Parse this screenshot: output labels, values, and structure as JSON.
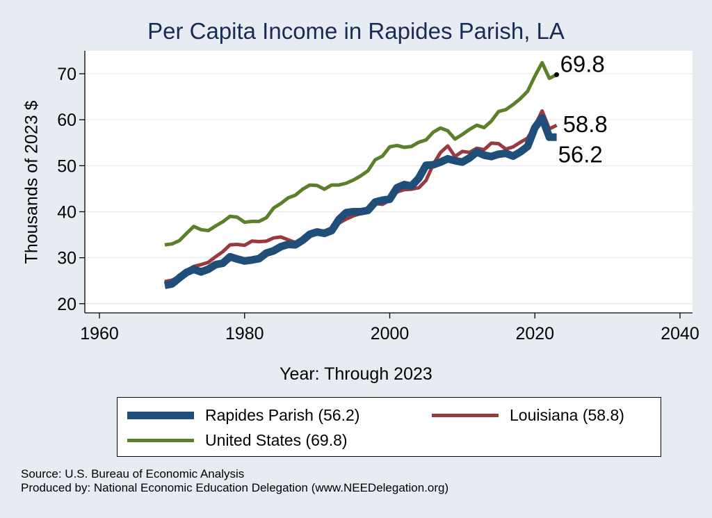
{
  "chart_data": {
    "type": "line",
    "title": "Per Capita Income in Rapides Parish, LA",
    "xlabel": "Year: Through 2023",
    "ylabel": "Thousands of 2023 $",
    "xlim": [
      1960,
      2040
    ],
    "ylim": [
      18,
      75
    ],
    "xticks": [
      1960,
      1980,
      2000,
      2020,
      2040
    ],
    "yticks": [
      20,
      30,
      40,
      50,
      60,
      70
    ],
    "grid": "horizontal",
    "legend_position": "bottom",
    "x": [
      1969,
      1970,
      1971,
      1972,
      1973,
      1974,
      1975,
      1976,
      1977,
      1978,
      1979,
      1980,
      1981,
      1982,
      1983,
      1984,
      1985,
      1986,
      1987,
      1988,
      1989,
      1990,
      1991,
      1992,
      1993,
      1994,
      1995,
      1996,
      1997,
      1998,
      1999,
      2000,
      2001,
      2002,
      2003,
      2004,
      2005,
      2006,
      2007,
      2008,
      2009,
      2010,
      2011,
      2012,
      2013,
      2014,
      2015,
      2016,
      2017,
      2018,
      2019,
      2020,
      2021,
      2022,
      2023
    ],
    "series": [
      {
        "name": "Rapides Parish (56.2)",
        "color": "#1f4e79",
        "width": 11,
        "values": [
          24.0,
          24.3,
          25.6,
          26.8,
          27.5,
          26.9,
          27.5,
          28.5,
          28.8,
          30.2,
          29.7,
          29.3,
          29.5,
          29.8,
          31.0,
          31.5,
          32.4,
          32.9,
          32.8,
          33.8,
          35.1,
          35.6,
          35.3,
          35.9,
          38.3,
          39.8,
          40.0,
          40.0,
          40.3,
          42.1,
          42.5,
          42.7,
          45.2,
          45.9,
          45.6,
          47.3,
          50.1,
          50.2,
          50.8,
          51.5,
          51.1,
          50.8,
          51.7,
          53.0,
          52.3,
          52.0,
          52.5,
          52.7,
          52.1,
          53.0,
          54.2,
          58.3,
          60.4,
          56.2,
          56.2
        ],
        "end_label": "56.2"
      },
      {
        "name": "Louisiana (58.8)",
        "color": "#9b3a3e",
        "width": 5,
        "values": [
          24.8,
          25.1,
          25.9,
          27.2,
          28.1,
          28.5,
          29.0,
          30.2,
          31.3,
          32.8,
          32.9,
          32.7,
          33.6,
          33.5,
          33.6,
          34.3,
          34.5,
          33.9,
          33.3,
          34.0,
          35.0,
          35.9,
          35.8,
          36.5,
          37.5,
          38.4,
          39.1,
          39.6,
          40.0,
          41.8,
          41.6,
          42.5,
          44.3,
          44.8,
          44.9,
          45.2,
          46.8,
          50.3,
          52.9,
          54.3,
          52.0,
          53.1,
          52.9,
          53.8,
          53.5,
          54.9,
          54.8,
          53.6,
          54.1,
          55.1,
          56.0,
          58.7,
          61.9,
          58.0,
          58.8
        ],
        "end_label": "58.8"
      },
      {
        "name": "United States (69.8)",
        "color": "#5b7f2a",
        "width": 5,
        "values": [
          32.8,
          33.0,
          33.7,
          35.3,
          36.8,
          36.1,
          35.9,
          36.9,
          37.8,
          39.0,
          38.8,
          37.7,
          37.9,
          37.9,
          38.7,
          40.8,
          41.8,
          43.0,
          43.6,
          44.9,
          45.8,
          45.7,
          44.9,
          45.8,
          45.8,
          46.2,
          46.9,
          47.8,
          48.9,
          51.3,
          52.1,
          54.1,
          54.4,
          54.0,
          54.2,
          55.1,
          55.6,
          57.3,
          58.2,
          57.6,
          55.8,
          56.8,
          57.9,
          58.8,
          58.3,
          59.7,
          61.8,
          62.2,
          63.3,
          64.6,
          66.2,
          69.5,
          72.4,
          69.0,
          69.8
        ],
        "end_label": "69.8"
      }
    ],
    "draw_order": [
      2,
      1,
      0
    ]
  },
  "source_line": "Source: U.S. Bureau of Economic Analysis",
  "produced_line": "Produced by: National Economic Education Delegation (www.NEEDelegation.org)"
}
